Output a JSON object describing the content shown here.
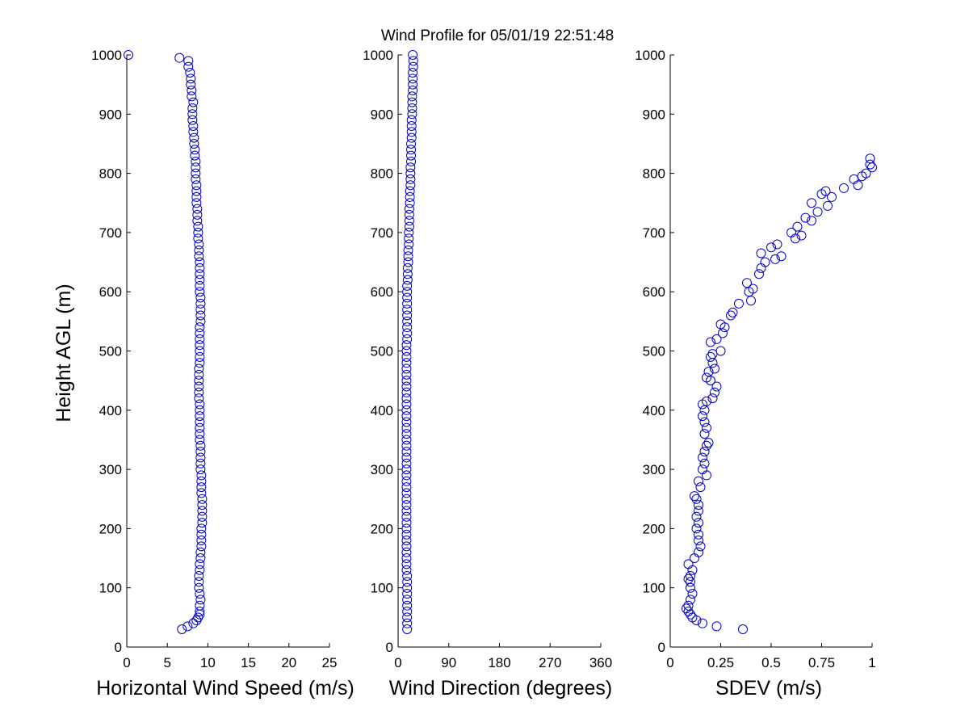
{
  "chart_data": {
    "title": "Wind Profile for  05/01/19 22:51:48",
    "shared_ylabel": "Height AGL (m)",
    "panels": [
      {
        "type": "scatter",
        "xlabel": "Horizontal Wind Speed (m/s)",
        "xlim": [
          0,
          25
        ],
        "ylim": [
          0,
          1000
        ],
        "xticks": [
          "0",
          "5",
          "10",
          "15",
          "20",
          "25"
        ],
        "yticks": [
          "0",
          "100",
          "200",
          "300",
          "400",
          "500",
          "600",
          "700",
          "800",
          "900",
          "1000"
        ],
        "marker_color": "#0000c8",
        "points": [
          [
            6.8,
            30
          ],
          [
            7.5,
            35
          ],
          [
            8.2,
            40
          ],
          [
            8.6,
            45
          ],
          [
            8.8,
            50
          ],
          [
            9.0,
            55
          ],
          [
            9.0,
            60
          ],
          [
            9.0,
            70
          ],
          [
            9.1,
            80
          ],
          [
            9.0,
            90
          ],
          [
            8.9,
            100
          ],
          [
            8.9,
            110
          ],
          [
            8.9,
            120
          ],
          [
            9.0,
            130
          ],
          [
            9.0,
            140
          ],
          [
            9.1,
            150
          ],
          [
            9.1,
            160
          ],
          [
            9.2,
            170
          ],
          [
            9.2,
            180
          ],
          [
            9.2,
            190
          ],
          [
            9.2,
            200
          ],
          [
            9.3,
            210
          ],
          [
            9.3,
            220
          ],
          [
            9.3,
            230
          ],
          [
            9.3,
            240
          ],
          [
            9.3,
            250
          ],
          [
            9.2,
            260
          ],
          [
            9.2,
            270
          ],
          [
            9.2,
            280
          ],
          [
            9.2,
            290
          ],
          [
            9.1,
            300
          ],
          [
            9.1,
            310
          ],
          [
            9.1,
            320
          ],
          [
            9.1,
            330
          ],
          [
            9.1,
            340
          ],
          [
            9.0,
            350
          ],
          [
            9.0,
            360
          ],
          [
            9.0,
            370
          ],
          [
            9.0,
            380
          ],
          [
            9.0,
            390
          ],
          [
            9.0,
            400
          ],
          [
            9.0,
            410
          ],
          [
            8.9,
            420
          ],
          [
            8.9,
            430
          ],
          [
            8.9,
            440
          ],
          [
            8.9,
            450
          ],
          [
            8.9,
            460
          ],
          [
            8.9,
            470
          ],
          [
            9.0,
            480
          ],
          [
            9.0,
            490
          ],
          [
            9.0,
            500
          ],
          [
            9.0,
            510
          ],
          [
            9.0,
            520
          ],
          [
            9.0,
            530
          ],
          [
            9.0,
            540
          ],
          [
            9.1,
            550
          ],
          [
            9.1,
            560
          ],
          [
            9.1,
            570
          ],
          [
            9.1,
            580
          ],
          [
            9.1,
            590
          ],
          [
            9.0,
            600
          ],
          [
            9.0,
            610
          ],
          [
            9.0,
            620
          ],
          [
            9.0,
            630
          ],
          [
            9.0,
            640
          ],
          [
            9.0,
            650
          ],
          [
            8.9,
            660
          ],
          [
            8.9,
            670
          ],
          [
            8.9,
            680
          ],
          [
            8.8,
            690
          ],
          [
            8.8,
            700
          ],
          [
            8.8,
            710
          ],
          [
            8.7,
            720
          ],
          [
            8.7,
            730
          ],
          [
            8.7,
            740
          ],
          [
            8.6,
            750
          ],
          [
            8.6,
            760
          ],
          [
            8.6,
            770
          ],
          [
            8.6,
            780
          ],
          [
            8.5,
            790
          ],
          [
            8.5,
            800
          ],
          [
            8.5,
            810
          ],
          [
            8.5,
            820
          ],
          [
            8.4,
            830
          ],
          [
            8.4,
            840
          ],
          [
            8.3,
            850
          ],
          [
            8.3,
            860
          ],
          [
            8.2,
            870
          ],
          [
            8.2,
            880
          ],
          [
            8.1,
            890
          ],
          [
            8.1,
            900
          ],
          [
            8.1,
            910
          ],
          [
            8.2,
            920
          ],
          [
            8.0,
            930
          ],
          [
            8.0,
            940
          ],
          [
            7.9,
            950
          ],
          [
            7.9,
            960
          ],
          [
            7.8,
            970
          ],
          [
            7.6,
            980
          ],
          [
            7.6,
            990
          ],
          [
            6.5,
            995
          ],
          [
            0.2,
            1000
          ]
        ]
      },
      {
        "type": "scatter",
        "xlabel": "Wind Direction (degrees)",
        "xlim": [
          0,
          360
        ],
        "ylim": [
          0,
          1000
        ],
        "xticks": [
          "0",
          "90",
          "180",
          "270",
          "360"
        ],
        "yticks": [
          "0",
          "100",
          "200",
          "300",
          "400",
          "500",
          "600",
          "700",
          "800",
          "900",
          "1000"
        ],
        "marker_color": "#0000c8",
        "points": [
          [
            16,
            30
          ],
          [
            16,
            40
          ],
          [
            16,
            50
          ],
          [
            16,
            60
          ],
          [
            16,
            70
          ],
          [
            16,
            80
          ],
          [
            16,
            90
          ],
          [
            16,
            100
          ],
          [
            16,
            110
          ],
          [
            16,
            120
          ],
          [
            15,
            130
          ],
          [
            15,
            140
          ],
          [
            15,
            150
          ],
          [
            15,
            160
          ],
          [
            15,
            170
          ],
          [
            15,
            180
          ],
          [
            15,
            190
          ],
          [
            15,
            200
          ],
          [
            15,
            210
          ],
          [
            15,
            220
          ],
          [
            15,
            230
          ],
          [
            15,
            240
          ],
          [
            15,
            250
          ],
          [
            15,
            260
          ],
          [
            15,
            270
          ],
          [
            15,
            280
          ],
          [
            15,
            290
          ],
          [
            15,
            300
          ],
          [
            15,
            310
          ],
          [
            15,
            320
          ],
          [
            15,
            330
          ],
          [
            15,
            340
          ],
          [
            15,
            350
          ],
          [
            15,
            360
          ],
          [
            15,
            370
          ],
          [
            15,
            380
          ],
          [
            15,
            390
          ],
          [
            15,
            400
          ],
          [
            15,
            410
          ],
          [
            15,
            420
          ],
          [
            15,
            430
          ],
          [
            15,
            440
          ],
          [
            15,
            450
          ],
          [
            15,
            460
          ],
          [
            15,
            470
          ],
          [
            15,
            480
          ],
          [
            15,
            490
          ],
          [
            15,
            500
          ],
          [
            15,
            510
          ],
          [
            16,
            520
          ],
          [
            16,
            530
          ],
          [
            16,
            540
          ],
          [
            16,
            550
          ],
          [
            16,
            560
          ],
          [
            16,
            570
          ],
          [
            16,
            580
          ],
          [
            16,
            590
          ],
          [
            16,
            600
          ],
          [
            16,
            610
          ],
          [
            17,
            620
          ],
          [
            17,
            630
          ],
          [
            17,
            640
          ],
          [
            18,
            650
          ],
          [
            18,
            660
          ],
          [
            18,
            670
          ],
          [
            19,
            680
          ],
          [
            19,
            690
          ],
          [
            19,
            700
          ],
          [
            20,
            710
          ],
          [
            20,
            720
          ],
          [
            20,
            730
          ],
          [
            20,
            740
          ],
          [
            21,
            750
          ],
          [
            21,
            760
          ],
          [
            21,
            770
          ],
          [
            22,
            780
          ],
          [
            22,
            790
          ],
          [
            22,
            800
          ],
          [
            22,
            810
          ],
          [
            23,
            820
          ],
          [
            23,
            830
          ],
          [
            23,
            840
          ],
          [
            23,
            850
          ],
          [
            24,
            860
          ],
          [
            24,
            870
          ],
          [
            24,
            880
          ],
          [
            24,
            890
          ],
          [
            25,
            900
          ],
          [
            25,
            910
          ],
          [
            25,
            920
          ],
          [
            25,
            930
          ],
          [
            26,
            940
          ],
          [
            26,
            950
          ],
          [
            26,
            960
          ],
          [
            26,
            970
          ],
          [
            27,
            980
          ],
          [
            27,
            990
          ],
          [
            26,
            1000
          ]
        ]
      },
      {
        "type": "scatter",
        "xlabel": "SDEV  (m/s)",
        "xlim": [
          0,
          1
        ],
        "ylim": [
          0,
          1000
        ],
        "xticks": [
          "0",
          "0.25",
          "0.5",
          "0.75",
          "1"
        ],
        "yticks": [
          "0",
          "100",
          "200",
          "300",
          "400",
          "500",
          "600",
          "700",
          "800",
          "900",
          "1000"
        ],
        "marker_color": "#0000c8",
        "points": [
          [
            0.36,
            30
          ],
          [
            0.23,
            35
          ],
          [
            0.16,
            40
          ],
          [
            0.13,
            45
          ],
          [
            0.11,
            50
          ],
          [
            0.1,
            55
          ],
          [
            0.09,
            60
          ],
          [
            0.08,
            65
          ],
          [
            0.09,
            70
          ],
          [
            0.1,
            80
          ],
          [
            0.11,
            90
          ],
          [
            0.1,
            100
          ],
          [
            0.1,
            110
          ],
          [
            0.09,
            115
          ],
          [
            0.1,
            120
          ],
          [
            0.11,
            130
          ],
          [
            0.09,
            140
          ],
          [
            0.12,
            150
          ],
          [
            0.14,
            160
          ],
          [
            0.15,
            170
          ],
          [
            0.14,
            180
          ],
          [
            0.14,
            190
          ],
          [
            0.13,
            200
          ],
          [
            0.14,
            210
          ],
          [
            0.13,
            220
          ],
          [
            0.14,
            230
          ],
          [
            0.14,
            240
          ],
          [
            0.13,
            250
          ],
          [
            0.12,
            255
          ],
          [
            0.15,
            270
          ],
          [
            0.14,
            280
          ],
          [
            0.18,
            290
          ],
          [
            0.16,
            300
          ],
          [
            0.17,
            310
          ],
          [
            0.16,
            320
          ],
          [
            0.17,
            330
          ],
          [
            0.18,
            340
          ],
          [
            0.19,
            345
          ],
          [
            0.17,
            360
          ],
          [
            0.18,
            370
          ],
          [
            0.17,
            380
          ],
          [
            0.16,
            390
          ],
          [
            0.17,
            400
          ],
          [
            0.16,
            410
          ],
          [
            0.18,
            415
          ],
          [
            0.21,
            420
          ],
          [
            0.22,
            430
          ],
          [
            0.23,
            440
          ],
          [
            0.2,
            450
          ],
          [
            0.18,
            455
          ],
          [
            0.19,
            465
          ],
          [
            0.22,
            470
          ],
          [
            0.21,
            480
          ],
          [
            0.2,
            490
          ],
          [
            0.21,
            495
          ],
          [
            0.25,
            500
          ],
          [
            0.2,
            515
          ],
          [
            0.23,
            520
          ],
          [
            0.26,
            530
          ],
          [
            0.27,
            540
          ],
          [
            0.25,
            545
          ],
          [
            0.3,
            560
          ],
          [
            0.31,
            565
          ],
          [
            0.34,
            580
          ],
          [
            0.4,
            585
          ],
          [
            0.39,
            600
          ],
          [
            0.41,
            605
          ],
          [
            0.38,
            615
          ],
          [
            0.44,
            630
          ],
          [
            0.45,
            640
          ],
          [
            0.47,
            650
          ],
          [
            0.52,
            655
          ],
          [
            0.55,
            660
          ],
          [
            0.45,
            665
          ],
          [
            0.5,
            675
          ],
          [
            0.53,
            680
          ],
          [
            0.62,
            690
          ],
          [
            0.65,
            695
          ],
          [
            0.6,
            700
          ],
          [
            0.63,
            710
          ],
          [
            0.7,
            720
          ],
          [
            0.67,
            725
          ],
          [
            0.73,
            735
          ],
          [
            0.78,
            745
          ],
          [
            0.7,
            750
          ],
          [
            0.8,
            760
          ],
          [
            0.75,
            765
          ],
          [
            0.77,
            770
          ],
          [
            0.86,
            775
          ],
          [
            0.93,
            780
          ],
          [
            0.91,
            790
          ],
          [
            0.95,
            795
          ],
          [
            0.97,
            800
          ],
          [
            1.0,
            810
          ],
          [
            0.99,
            815
          ],
          [
            0.99,
            825
          ]
        ]
      }
    ]
  }
}
